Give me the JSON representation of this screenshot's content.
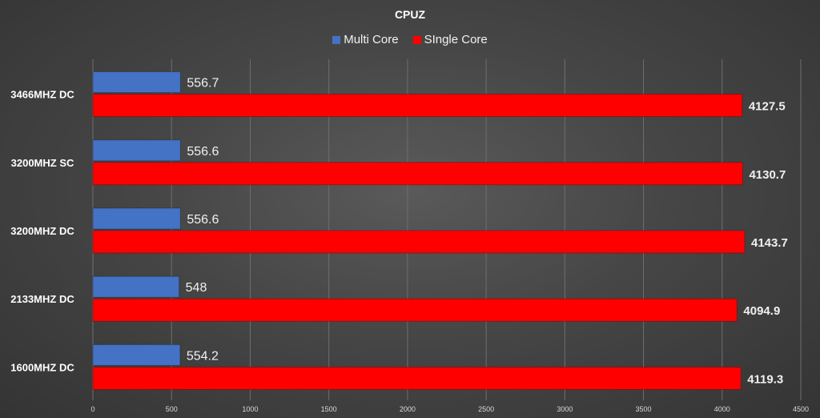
{
  "chart_data": {
    "type": "bar",
    "orientation": "horizontal",
    "title": "CPUZ",
    "categories": [
      "3466MHZ DC",
      "3200MHZ SC",
      "3200MHZ DC",
      "2133MHZ DC",
      "1600MHZ DC"
    ],
    "series": [
      {
        "name": "Multi Core",
        "color": "#4472c4",
        "values": [
          556.7,
          556.6,
          556.6,
          548,
          554.2
        ]
      },
      {
        "name": "SIngle Core",
        "color": "#ff0000",
        "values": [
          4127.5,
          4130.7,
          4143.7,
          4094.9,
          4119.3
        ]
      }
    ],
    "xlim": [
      0,
      4500
    ],
    "x_ticks": [
      "0",
      "500",
      "1000",
      "1500",
      "2000",
      "2500",
      "3000",
      "3500",
      "4000",
      "4500"
    ],
    "grid": true,
    "legend_position": "top"
  }
}
